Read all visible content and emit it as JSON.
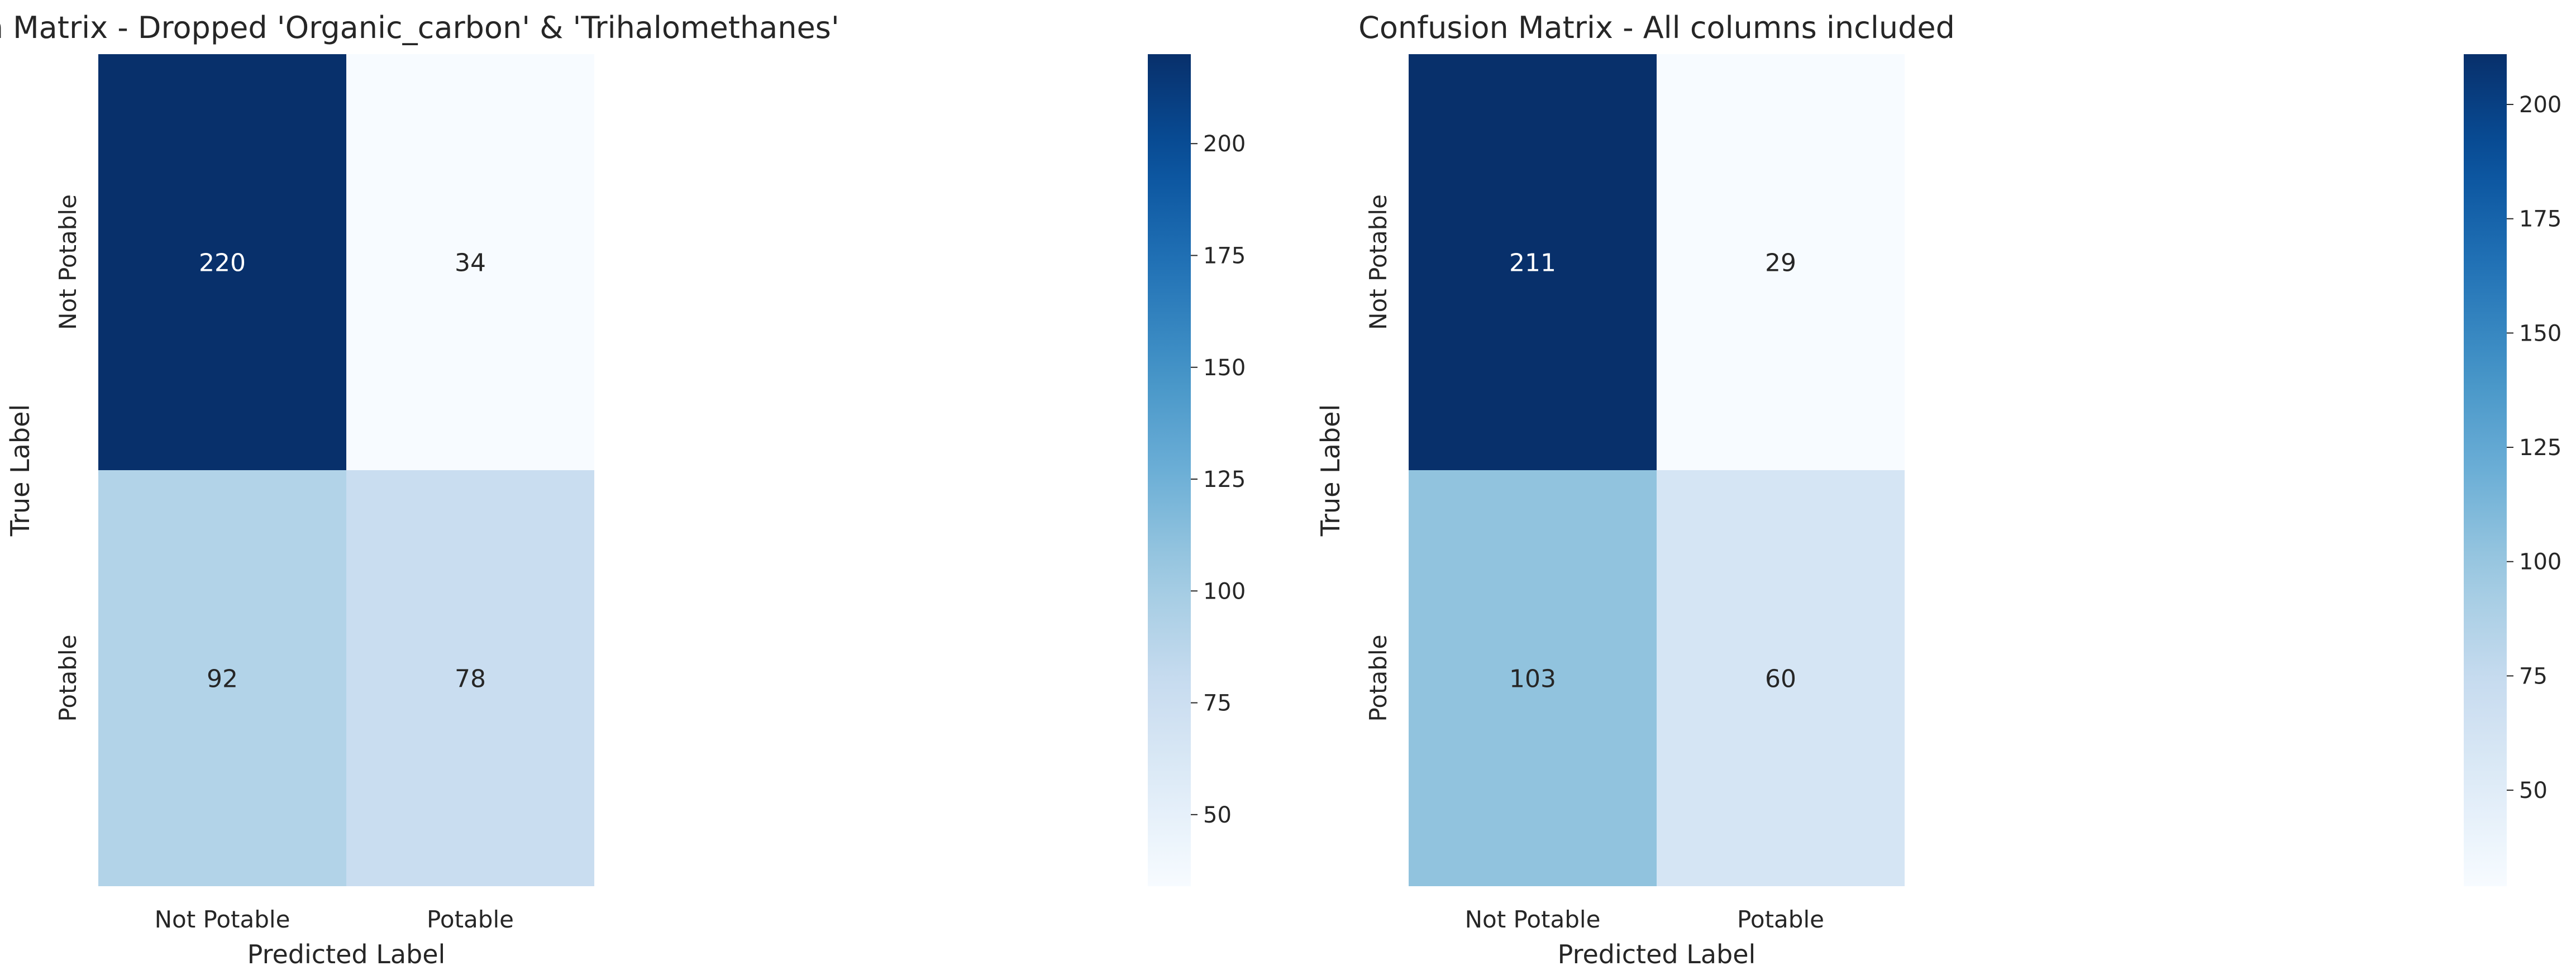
{
  "chart_data": [
    {
      "type": "heatmap",
      "title": "Confusion Matrix - Dropped 'Organic_carbon' & 'Trihalomethanes'",
      "xlabel": "Predicted Label",
      "ylabel": "True Label",
      "x_categories": [
        "Not Potable",
        "Potable"
      ],
      "y_categories": [
        "Not Potable",
        "Potable"
      ],
      "values": [
        [
          220,
          34
        ],
        [
          92,
          78
        ]
      ],
      "colormap": "Blues",
      "color_range": [
        34,
        220
      ],
      "colorbar_ticks": [
        50,
        75,
        100,
        125,
        150,
        175,
        200
      ],
      "grid": false
    },
    {
      "type": "heatmap",
      "title": "Confusion Matrix - All columns included",
      "xlabel": "Predicted Label",
      "ylabel": "True Label",
      "x_categories": [
        "Not Potable",
        "Potable"
      ],
      "y_categories": [
        "Not Potable",
        "Potable"
      ],
      "values": [
        [
          211,
          29
        ],
        [
          103,
          60
        ]
      ],
      "colormap": "Blues",
      "color_range": [
        29,
        211
      ],
      "colorbar_ticks": [
        50,
        75,
        100,
        125,
        150,
        175,
        200
      ],
      "grid": false
    }
  ]
}
